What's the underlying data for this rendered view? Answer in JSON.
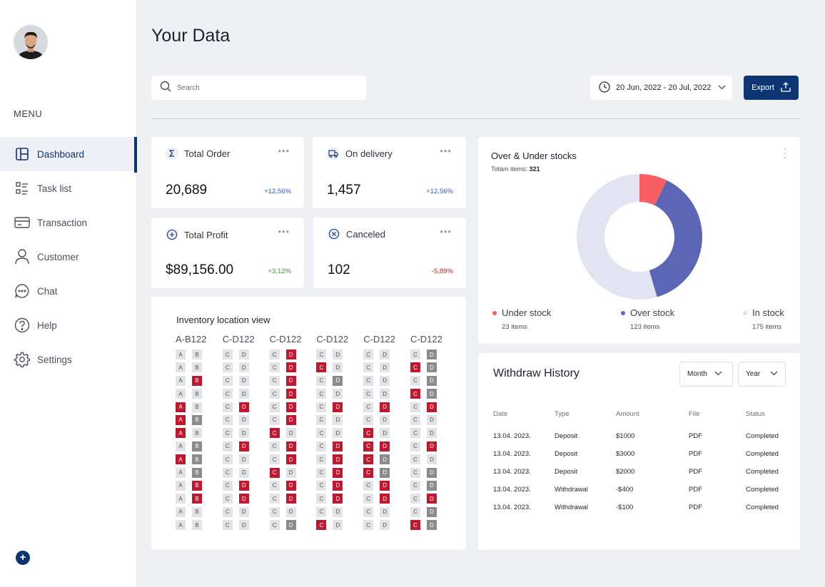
{
  "sidebar": {
    "menu_label": "MENU",
    "items": [
      {
        "label": "Dashboard",
        "icon": "dashboard-icon"
      },
      {
        "label": "Task list",
        "icon": "task-list-icon"
      },
      {
        "label": "Transaction",
        "icon": "card-icon"
      },
      {
        "label": "Customer",
        "icon": "user-icon"
      },
      {
        "label": "Chat",
        "icon": "chat-icon"
      },
      {
        "label": "Help",
        "icon": "help-icon"
      },
      {
        "label": "Settings",
        "icon": "gear-icon"
      }
    ],
    "active": "Dashboard",
    "fab_label": "+"
  },
  "header": {
    "title": "Your Data",
    "search_placeholder": "Search",
    "date_range": "20 Jun, 2022 - 20 Jul, 2022",
    "export_label": "Export"
  },
  "stats": [
    {
      "label": "Total Order",
      "value": "20,689",
      "change": "+12,56%",
      "icon": "sigma-icon",
      "trend": "up"
    },
    {
      "label": "On delivery",
      "value": "1,457",
      "change": "+12,56%",
      "icon": "truck-icon",
      "trend": "up"
    },
    {
      "label": "Total Profit",
      "value": "$89,156.00",
      "change": "+3,12%",
      "icon": "plus-circle-icon",
      "trend": "up"
    },
    {
      "label": "Canceled",
      "value": "102",
      "change": "-5,89%",
      "icon": "x-circle-icon",
      "trend": "down"
    }
  ],
  "stat_menu_label": "•••",
  "inventory": {
    "title": "Inventory location view",
    "columns": [
      {
        "label": "A-B122",
        "letters": [
          "A",
          "B"
        ],
        "rows": [
          "..",
          "..",
          ".r",
          "..",
          "r.",
          "rg",
          "r.",
          ".g",
          "rg",
          ".g",
          ".r",
          ".r",
          "..",
          ".."
        ]
      },
      {
        "label": "C-D122",
        "letters": [
          "C",
          "D"
        ],
        "rows": [
          "..",
          "..",
          "..",
          "..",
          ".r",
          "..",
          "..",
          ".r",
          "..",
          "..",
          ".r",
          ".r",
          "..",
          ".."
        ]
      },
      {
        "label": "C-D122",
        "letters": [
          "C",
          "D"
        ],
        "rows": [
          ".r",
          ".r",
          ".r",
          ".r",
          ".r",
          ".r",
          "r.",
          ".r",
          ".r",
          "r.",
          ".r",
          ".r",
          "..",
          ".g"
        ]
      },
      {
        "label": "C-D122",
        "letters": [
          "C",
          "D"
        ],
        "rows": [
          "..",
          "r.",
          ".g",
          "..",
          ".r",
          "..",
          "..",
          ".r",
          ".r",
          ".r",
          ".r",
          ".r",
          "..",
          "r."
        ]
      },
      {
        "label": "C-D122",
        "letters": [
          "C",
          "D"
        ],
        "rows": [
          "..",
          "..",
          "..",
          "..",
          ".r",
          "..",
          "r.",
          "rr",
          "rg",
          "rg",
          ".r",
          ".r",
          "..",
          ".."
        ]
      },
      {
        "label": "C-D122",
        "letters": [
          "C",
          "D"
        ],
        "rows": [
          ".g",
          "rg",
          ".g",
          "rg",
          ".r",
          "..",
          "..",
          ".r",
          "..",
          ".g",
          ".g",
          ".r",
          ".g",
          "rg"
        ]
      }
    ]
  },
  "stocks": {
    "title": "Over & Under stocks",
    "subtitle_label": "Totam items:",
    "subtitle_value": "321",
    "segments": [
      {
        "name": "Under stock",
        "count": "23 items",
        "value": 23,
        "color": "#f75f62"
      },
      {
        "name": "Over stock",
        "count": "123 items",
        "value": 123,
        "color": "#5b66b7"
      },
      {
        "name": "In stock",
        "count": "175 items",
        "value": 175,
        "color": "#e3e4f1"
      }
    ]
  },
  "chart_data": {
    "type": "pie",
    "title": "Over & Under stocks",
    "categories": [
      "Under stock",
      "Over stock",
      "In stock"
    ],
    "values": [
      23,
      123,
      175
    ],
    "legend": "bottom"
  },
  "withdraw": {
    "title": "Withdraw History",
    "month_label": "Month",
    "year_label": "Year",
    "headers": [
      "Date",
      "Type",
      "Amount",
      "File",
      "Status"
    ],
    "rows": [
      [
        "13.04. 2023.",
        "Deposit",
        "$1000",
        "PDF",
        "Completed"
      ],
      [
        "13.04. 2023.",
        "Deposit",
        "$3000",
        "PDF",
        "Completed"
      ],
      [
        "13.04. 2023.",
        "Deposit",
        "$2000",
        "PDF",
        "Completed"
      ],
      [
        "13.04. 2023.",
        "Withdrawal",
        "-$400",
        "PDF",
        "Completed"
      ],
      [
        "13.04. 2023.",
        "Withdrawal",
        "-$100",
        "PDF",
        "Completed"
      ]
    ]
  },
  "colors": {
    "accent": "#0d3573",
    "red": "#c0192f",
    "gray": "#8a8b8f"
  }
}
